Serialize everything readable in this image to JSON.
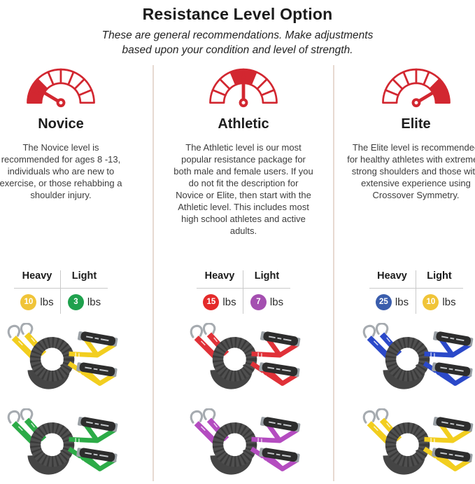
{
  "page": {
    "title": "Resistance Level Option",
    "subtitle_lines": [
      "These are general recommendations. Make adjustments",
      "based upon your condition and level of strength."
    ]
  },
  "accent_red": "#d22730",
  "unit": "lbs",
  "table_headers": {
    "heavy": "Heavy",
    "light": "Light"
  },
  "columns": [
    {
      "id": "novice",
      "name": "Novice",
      "description": "The Novice level is recommended for ages 8 -13, individuals who are new to exercise, or those rehabbing a shoulder injury.",
      "gauge": {
        "level": "low",
        "needle_deg": 149,
        "solid_segments": [
          0,
          1
        ]
      },
      "weights": {
        "heavy": {
          "value": "10",
          "color": "#f0c438"
        },
        "light": {
          "value": "3",
          "color": "#1fa14d"
        }
      },
      "products": [
        {
          "name": "heavy-band-yellow",
          "strap_color": "#f2ce1f"
        },
        {
          "name": "light-band-green",
          "strap_color": "#2cab47"
        }
      ]
    },
    {
      "id": "athletic",
      "name": "Athletic",
      "description": "The Athletic level is our most popular resistance package for both male and female users. If you do not fit the description for Novice or Elite, then start with the Athletic level. This includes most high school athletes and active adults.",
      "gauge": {
        "level": "mid",
        "needle_deg": 90,
        "solid_segments": [
          3,
          4
        ]
      },
      "weights": {
        "heavy": {
          "value": "15",
          "color": "#e42a2a"
        },
        "light": {
          "value": "7",
          "color": "#a44fb0"
        }
      },
      "products": [
        {
          "name": "heavy-band-red",
          "strap_color": "#e03138"
        },
        {
          "name": "light-band-purple",
          "strap_color": "#b44cc0"
        }
      ]
    },
    {
      "id": "elite",
      "name": "Elite",
      "description": "The Elite level is recommended for healthy athletes with extremely strong shoulders and those with extensive experience using Crossover Symmetry.",
      "gauge": {
        "level": "high",
        "needle_deg": 31,
        "solid_segments": [
          6,
          7
        ]
      },
      "weights": {
        "heavy": {
          "value": "25",
          "color": "#3a5dac"
        },
        "light": {
          "value": "10",
          "color": "#f0c438"
        }
      },
      "products": [
        {
          "name": "heavy-band-blue",
          "strap_color": "#2b49c9"
        },
        {
          "name": "light-band-yellow",
          "strap_color": "#f2ce1f"
        }
      ]
    }
  ]
}
